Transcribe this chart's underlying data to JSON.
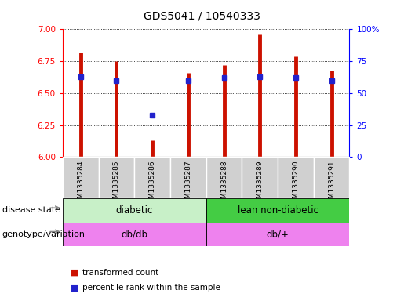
{
  "title": "GDS5041 / 10540333",
  "samples": [
    "GSM1335284",
    "GSM1335285",
    "GSM1335286",
    "GSM1335287",
    "GSM1335288",
    "GSM1335289",
    "GSM1335290",
    "GSM1335291"
  ],
  "red_values": [
    6.82,
    6.75,
    6.13,
    6.66,
    6.72,
    6.96,
    6.79,
    6.68
  ],
  "blue_percentiles": [
    63,
    60,
    33,
    60,
    62,
    63,
    62,
    60
  ],
  "ylim": [
    6.0,
    7.0
  ],
  "yticks": [
    6.0,
    6.25,
    6.5,
    6.75,
    7.0
  ],
  "y2ticks": [
    0,
    25,
    50,
    75,
    100
  ],
  "disease_state": [
    [
      "diabetic",
      0,
      4
    ],
    [
      "lean non-diabetic",
      4,
      8
    ]
  ],
  "disease_colors": [
    "#c8f0c8",
    "#44cc44"
  ],
  "genotype": [
    [
      "db/db",
      0,
      4
    ],
    [
      "db/+",
      4,
      8
    ]
  ],
  "genotype_color": "#ee82ee",
  "bar_color": "#cc1100",
  "dot_color": "#2222cc",
  "bg_color": "#d0d0d0",
  "plot_bg": "#ffffff",
  "title_fontsize": 10,
  "tick_fontsize": 7.5,
  "label_fontsize": 8
}
